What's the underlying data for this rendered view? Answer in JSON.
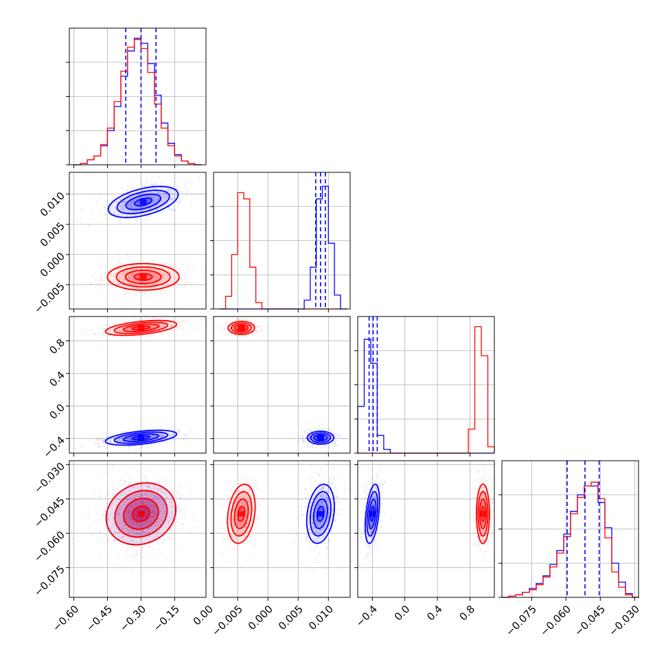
{
  "figure": {
    "type": "corner-plot",
    "colors": {
      "blue_sample": "#0000ff",
      "red_sample": "#ff0000",
      "grid": "#b0b0b0",
      "frame": "#000000"
    },
    "grid": true
  },
  "chart_data": [
    {
      "id": "hist_p1",
      "type": "histogram",
      "xlim": [
        -0.62,
        -0.01
      ],
      "bin_width": 0.03,
      "bin_starts": [
        -0.6,
        -0.57,
        -0.54,
        -0.51,
        -0.48,
        -0.45,
        -0.42,
        -0.39,
        -0.36,
        -0.33,
        -0.3,
        -0.27,
        -0.24,
        -0.21,
        -0.18,
        -0.15,
        -0.12,
        -0.09,
        -0.06
      ],
      "series": [
        {
          "color": "#0000ff",
          "values": [
            0.0,
            0.01,
            0.04,
            0.07,
            0.15,
            0.27,
            0.46,
            0.7,
            0.9,
            1.0,
            0.96,
            0.8,
            0.55,
            0.33,
            0.17,
            0.08,
            0.03,
            0.01,
            0.0
          ]
        },
        {
          "color": "#ff0000",
          "values": [
            0.0,
            0.01,
            0.04,
            0.07,
            0.16,
            0.29,
            0.5,
            0.74,
            0.93,
            0.99,
            0.92,
            0.73,
            0.48,
            0.29,
            0.15,
            0.07,
            0.03,
            0.01,
            0.0
          ]
        }
      ],
      "quantile_lines": [
        -0.368,
        -0.3,
        -0.233
      ]
    },
    {
      "id": "hist_p2",
      "type": "histogram",
      "xlim": [
        -0.009,
        0.0136
      ],
      "bin_width": 0.001,
      "bin_starts": [
        -0.008,
        -0.007,
        -0.006,
        -0.005,
        -0.004,
        -0.003,
        -0.002,
        -0.001,
        0.0,
        0.001,
        0.002,
        0.003,
        0.004,
        0.005,
        0.006,
        0.007,
        0.008,
        0.009,
        0.01,
        0.011,
        0.012
      ],
      "series": [
        {
          "color": "#ff0000",
          "values": [
            0.0,
            0.1,
            0.43,
            0.92,
            0.87,
            0.33,
            0.05,
            0.0,
            0.0,
            0.0,
            0.0,
            0.0,
            0.0,
            0.0,
            0.0,
            0.0,
            0.0,
            0.0,
            0.0,
            0.0,
            0.0
          ]
        },
        {
          "color": "#0000ff",
          "values": [
            0.0,
            0.0,
            0.0,
            0.0,
            0.0,
            0.0,
            0.0,
            0.0,
            0.0,
            0.0,
            0.0,
            0.0,
            0.0,
            0.0,
            0.07,
            0.33,
            0.87,
            0.97,
            0.52,
            0.11,
            0.0
          ]
        }
      ],
      "quantile_lines": [
        0.0079,
        0.0087,
        0.0095
      ]
    },
    {
      "id": "hist_p3",
      "type": "histogram",
      "xlim": [
        -0.58,
        1.1
      ],
      "bin_width": 0.08,
      "bin_starts": [
        -0.58,
        -0.5,
        -0.42,
        -0.34,
        -0.26,
        -0.18,
        -0.1,
        -0.02,
        0.06,
        0.14,
        0.22,
        0.3,
        0.38,
        0.46,
        0.54,
        0.62,
        0.7,
        0.78,
        0.86,
        0.94,
        1.02
      ],
      "series": [
        {
          "color": "#0000ff",
          "values": [
            0.37,
            0.9,
            0.71,
            0.14,
            0.03,
            0.0,
            0.0,
            0.0,
            0.0,
            0.0,
            0.0,
            0.0,
            0.0,
            0.0,
            0.0,
            0.0,
            0.0,
            0.0,
            0.0,
            0.0,
            0.0
          ]
        },
        {
          "color": "#ff0000",
          "values": [
            0.0,
            0.0,
            0.0,
            0.0,
            0.0,
            0.0,
            0.0,
            0.0,
            0.0,
            0.0,
            0.0,
            0.0,
            0.0,
            0.0,
            0.0,
            0.0,
            0.0,
            0.19,
            1.0,
            0.77,
            0.05
          ]
        }
      ],
      "quantile_lines": [
        -0.44,
        -0.39,
        -0.34
      ]
    },
    {
      "id": "hist_p4",
      "type": "histogram",
      "xlim": [
        -0.088,
        -0.0283
      ],
      "bin_width": 0.003,
      "bin_starts": [
        -0.088,
        -0.085,
        -0.082,
        -0.079,
        -0.076,
        -0.073,
        -0.07,
        -0.067,
        -0.064,
        -0.061,
        -0.058,
        -0.055,
        -0.052,
        -0.049,
        -0.046,
        -0.043,
        -0.04,
        -0.037,
        -0.034,
        -0.031
      ],
      "series": [
        {
          "color": "#0000ff",
          "values": [
            0.0,
            0.01,
            0.02,
            0.04,
            0.07,
            0.11,
            0.17,
            0.26,
            0.37,
            0.5,
            0.68,
            0.81,
            0.88,
            0.88,
            0.75,
            0.55,
            0.27,
            0.12,
            0.03,
            0.0
          ]
        },
        {
          "color": "#ff0000",
          "values": [
            0.0,
            0.01,
            0.02,
            0.04,
            0.06,
            0.1,
            0.16,
            0.24,
            0.35,
            0.48,
            0.66,
            0.79,
            0.88,
            0.91,
            0.78,
            0.47,
            0.2,
            0.08,
            0.02,
            0.0
          ]
        }
      ],
      "quantile_lines": [
        -0.0595,
        -0.0517,
        -0.0455
      ]
    },
    {
      "id": "pair_p2_p1",
      "type": "density-contour",
      "x_axis": "p1",
      "y_axis": "p2",
      "xlim": [
        -0.62,
        -0.01
      ],
      "ylim": [
        -0.009,
        0.0136
      ],
      "series": [
        {
          "color": "#0000ff",
          "center": [
            -0.29,
            0.0087
          ],
          "spread": [
            0.08,
            0.0011
          ],
          "rotation": -14
        },
        {
          "color": "#ff0000",
          "center": [
            -0.29,
            -0.0037
          ],
          "spread": [
            0.08,
            0.0011
          ],
          "rotation": 0
        }
      ]
    },
    {
      "id": "pair_p3_p1",
      "type": "density-contour",
      "x_axis": "p1",
      "y_axis": "p3",
      "xlim": [
        -0.62,
        -0.01
      ],
      "ylim": [
        -0.58,
        1.1
      ],
      "series": [
        {
          "color": "#ff0000",
          "center": [
            -0.3,
            0.96
          ],
          "spread": [
            0.08,
            0.04
          ],
          "rotation": -6
        },
        {
          "color": "#0000ff",
          "center": [
            -0.3,
            -0.39
          ],
          "spread": [
            0.08,
            0.04
          ],
          "rotation": -6
        }
      ]
    },
    {
      "id": "pair_p3_p2",
      "type": "density-contour",
      "x_axis": "p2",
      "y_axis": "p3",
      "xlim": [
        -0.009,
        0.0136
      ],
      "ylim": [
        -0.58,
        1.1
      ],
      "series": [
        {
          "color": "#ff0000",
          "center": [
            -0.0044,
            0.96
          ],
          "spread": [
            0.0011,
            0.04
          ],
          "rotation": 0
        },
        {
          "color": "#0000ff",
          "center": [
            0.0087,
            -0.39
          ],
          "spread": [
            0.0011,
            0.04
          ],
          "rotation": 0
        }
      ]
    },
    {
      "id": "pair_p4_p1",
      "type": "density-contour",
      "x_axis": "p1",
      "y_axis": "p4",
      "xlim": [
        -0.62,
        -0.01
      ],
      "ylim": [
        -0.088,
        -0.0283
      ],
      "series": [
        {
          "color": "#0000ff",
          "center": [
            -0.3,
            -0.0515
          ],
          "spread": [
            0.08,
            0.0065
          ],
          "rotation": -25
        },
        {
          "color": "#ff0000",
          "center": [
            -0.3,
            -0.0515
          ],
          "spread": [
            0.08,
            0.0065
          ],
          "rotation": -25
        }
      ]
    },
    {
      "id": "pair_p4_p2",
      "type": "density-contour",
      "x_axis": "p2",
      "y_axis": "p4",
      "xlim": [
        -0.009,
        0.0136
      ],
      "ylim": [
        -0.088,
        -0.0283
      ],
      "series": [
        {
          "color": "#ff0000",
          "center": [
            -0.0044,
            -0.0515
          ],
          "spread": [
            0.0011,
            0.0065
          ],
          "rotation": 8
        },
        {
          "color": "#0000ff",
          "center": [
            0.0087,
            -0.0515
          ],
          "spread": [
            0.0011,
            0.0065
          ],
          "rotation": 8
        }
      ]
    },
    {
      "id": "pair_p4_p3",
      "type": "density-contour",
      "x_axis": "p3",
      "y_axis": "p4",
      "xlim": [
        -0.58,
        1.1
      ],
      "ylim": [
        -0.088,
        -0.0283
      ],
      "series": [
        {
          "color": "#0000ff",
          "center": [
            -0.4,
            -0.0515
          ],
          "spread": [
            0.04,
            0.0065
          ],
          "rotation": 6
        },
        {
          "color": "#ff0000",
          "center": [
            0.96,
            -0.0515
          ],
          "spread": [
            0.04,
            0.0065
          ],
          "rotation": 0
        }
      ]
    }
  ],
  "axes_ticks": {
    "p1": {
      "values": [
        -0.6,
        -0.45,
        -0.3,
        -0.15,
        0.0
      ],
      "labels": [
        "−0.60",
        "−0.45",
        "−0.30",
        "−0.15",
        "0.00"
      ]
    },
    "p2": {
      "values": [
        -0.005,
        0.0,
        0.005,
        0.01
      ],
      "labels": [
        "−0.005",
        "0.000",
        "0.005",
        "0.010"
      ]
    },
    "p3": {
      "values": [
        -0.4,
        0.0,
        0.4,
        0.8
      ],
      "labels": [
        "−0.4",
        "0.0",
        "0.4",
        "0.8"
      ]
    },
    "p4": {
      "values": [
        -0.075,
        -0.06,
        -0.045,
        -0.03
      ],
      "labels": [
        "−0.075",
        "−0.060",
        "−0.045",
        "−0.030"
      ]
    }
  }
}
